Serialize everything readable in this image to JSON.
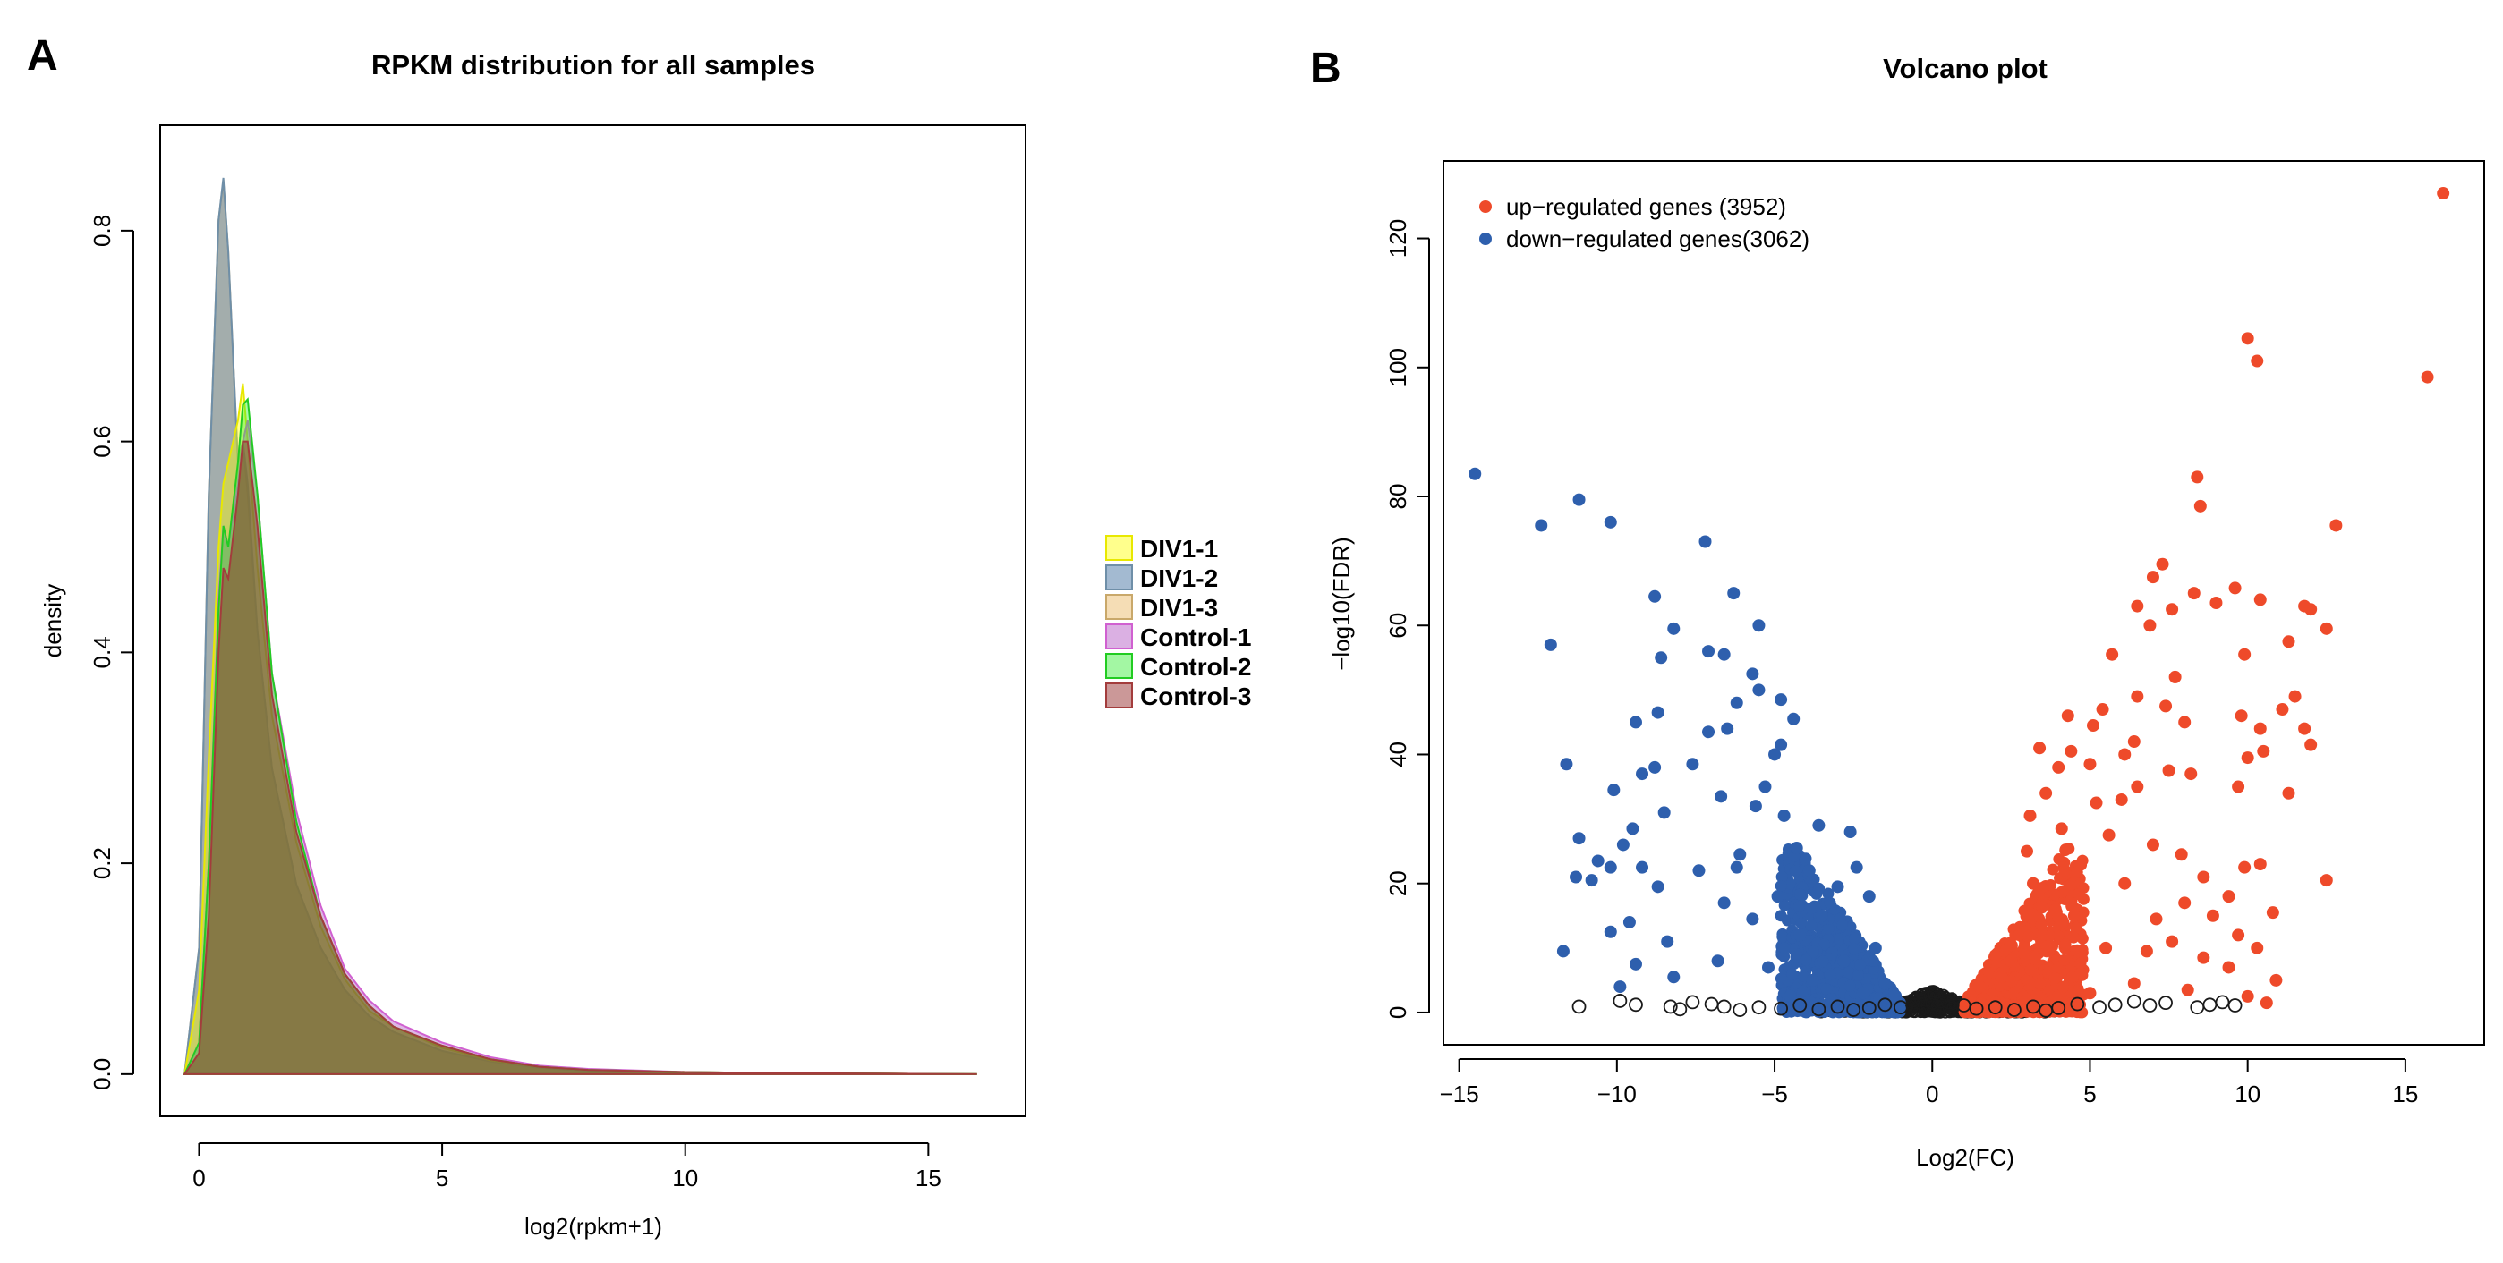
{
  "panels": {
    "a": {
      "letter": "A"
    },
    "b": {
      "letter": "B"
    }
  },
  "chart_data": [
    {
      "type": "area",
      "title": "RPKM distribution for all samples",
      "xlabel": "log2(rpkm+1)",
      "ylabel": "density",
      "xlim": [
        -0.8,
        17
      ],
      "ylim": [
        -0.04,
        0.9
      ],
      "xticks": [
        0,
        5,
        10,
        15
      ],
      "yticks": [
        0.0,
        0.2,
        0.4,
        0.6,
        0.8
      ],
      "xtick_labels": [
        "0",
        "5",
        "10",
        "15"
      ],
      "ytick_labels": [
        "0.0",
        "0.2",
        "0.4",
        "0.6",
        "0.8"
      ],
      "grid": false,
      "legend_position": "right",
      "x": [
        -0.3,
        0,
        0.2,
        0.4,
        0.5,
        0.6,
        0.8,
        0.9,
        1.0,
        1.2,
        1.5,
        2,
        2.5,
        3,
        3.5,
        4,
        5,
        6,
        7,
        8,
        10,
        12,
        14,
        16
      ],
      "series": [
        {
          "name": "DIV1-1",
          "fill": "#ffff00",
          "stroke": "#e8e800",
          "values": [
            0,
            0.08,
            0.3,
            0.5,
            0.56,
            0.58,
            0.62,
            0.655,
            0.6,
            0.48,
            0.34,
            0.22,
            0.14,
            0.09,
            0.06,
            0.045,
            0.025,
            0.013,
            0.007,
            0.004,
            0.002,
            0.001,
            0.0005,
            0
          ]
        },
        {
          "name": "DIV1-2",
          "fill": "#336699",
          "stroke": "#6f8fa8",
          "values": [
            0,
            0.12,
            0.55,
            0.81,
            0.85,
            0.78,
            0.58,
            0.6,
            0.56,
            0.42,
            0.29,
            0.18,
            0.12,
            0.08,
            0.055,
            0.04,
            0.022,
            0.012,
            0.006,
            0.003,
            0.0015,
            0.001,
            0.0004,
            0
          ]
        },
        {
          "name": "DIV1-3",
          "fill": "#e8b45c",
          "stroke": "#c9a86a",
          "values": [
            0,
            0.12,
            0.55,
            0.81,
            0.848,
            0.78,
            0.58,
            0.6,
            0.55,
            0.42,
            0.29,
            0.18,
            0.12,
            0.08,
            0.055,
            0.04,
            0.022,
            0.012,
            0.006,
            0.003,
            0.0015,
            0.001,
            0.0004,
            0
          ]
        },
        {
          "name": "Control-1",
          "fill": "#b050c0",
          "stroke": "#d060d0",
          "values": [
            0,
            0.03,
            0.2,
            0.45,
            0.52,
            0.5,
            0.56,
            0.6,
            0.62,
            0.55,
            0.38,
            0.25,
            0.16,
            0.1,
            0.07,
            0.05,
            0.03,
            0.016,
            0.008,
            0.005,
            0.002,
            0.001,
            0.0005,
            0
          ]
        },
        {
          "name": "Control-2",
          "fill": "#33ee33",
          "stroke": "#22cc22",
          "values": [
            0,
            0.03,
            0.2,
            0.44,
            0.52,
            0.5,
            0.58,
            0.635,
            0.64,
            0.55,
            0.38,
            0.24,
            0.15,
            0.095,
            0.065,
            0.045,
            0.027,
            0.014,
            0.007,
            0.004,
            0.002,
            0.001,
            0.0005,
            0
          ]
        },
        {
          "name": "Control-3",
          "fill": "#8b1a1a",
          "stroke": "#a33c3c",
          "values": [
            0,
            0.02,
            0.15,
            0.4,
            0.48,
            0.47,
            0.55,
            0.6,
            0.6,
            0.52,
            0.36,
            0.23,
            0.15,
            0.095,
            0.065,
            0.045,
            0.027,
            0.014,
            0.007,
            0.004,
            0.002,
            0.001,
            0.0005,
            0
          ]
        }
      ]
    },
    {
      "type": "scatter",
      "title": "Volcano plot",
      "xlabel": "Log2(FC)",
      "ylabel": "−log10(FDR)",
      "xlim": [
        -15.5,
        17.5
      ],
      "ylim": [
        -5,
        132
      ],
      "xticks": [
        -15,
        -10,
        -5,
        0,
        5,
        10,
        15
      ],
      "yticks": [
        0,
        20,
        40,
        60,
        80,
        100,
        120
      ],
      "xtick_labels": [
        "−15",
        "−10",
        "−5",
        "0",
        "5",
        "10",
        "15"
      ],
      "ytick_labels": [
        "0",
        "20",
        "40",
        "60",
        "80",
        "100",
        "120"
      ],
      "grid": false,
      "legend_position": "top-left",
      "colors": {
        "up": "#ee4a2a",
        "down": "#2e5fad",
        "ns": "#1a1a1a"
      },
      "series": [
        {
          "name": "up−regulated genes (3952)",
          "key": "up",
          "points": [
            [
              16.2,
              127
            ],
            [
              15.7,
              98.5
            ],
            [
              10.0,
              104.5
            ],
            [
              10.3,
              101
            ],
            [
              12.8,
              75.5
            ],
            [
              8.4,
              83
            ],
            [
              8.5,
              78.5
            ],
            [
              11.8,
              63
            ],
            [
              10.4,
              64
            ],
            [
              9.6,
              65.8
            ],
            [
              12.0,
              62.5
            ],
            [
              7.3,
              69.5
            ],
            [
              12.5,
              59.5
            ],
            [
              7.0,
              67.5
            ],
            [
              8.3,
              65
            ],
            [
              9.0,
              63.5
            ],
            [
              7.6,
              62.5
            ],
            [
              6.5,
              63
            ],
            [
              6.9,
              60
            ],
            [
              11.3,
              57.5
            ],
            [
              5.7,
              55.5
            ],
            [
              9.9,
              55.5
            ],
            [
              7.7,
              52
            ],
            [
              11.5,
              49
            ],
            [
              11.8,
              44
            ],
            [
              11.1,
              47
            ],
            [
              7.4,
              47.5
            ],
            [
              9.8,
              46
            ],
            [
              8.0,
              45
            ],
            [
              6.5,
              49
            ],
            [
              5.4,
              47
            ],
            [
              5.1,
              44.5
            ],
            [
              4.3,
              46
            ],
            [
              6.4,
              42
            ],
            [
              6.1,
              40
            ],
            [
              10.4,
              44
            ],
            [
              10.5,
              40.5
            ],
            [
              10.0,
              39.5
            ],
            [
              4.4,
              40.5
            ],
            [
              12.0,
              41.5
            ],
            [
              8.2,
              37
            ],
            [
              7.5,
              37.5
            ],
            [
              4.0,
              38
            ],
            [
              3.4,
              41
            ],
            [
              5.0,
              38.5
            ],
            [
              11.3,
              34
            ],
            [
              9.7,
              35
            ],
            [
              6.5,
              35
            ],
            [
              6.0,
              33
            ],
            [
              3.6,
              34
            ],
            [
              5.2,
              32.5
            ],
            [
              3.1,
              30.5
            ],
            [
              4.1,
              28.5
            ],
            [
              5.6,
              27.5
            ],
            [
              7.0,
              26
            ],
            [
              7.9,
              24.5
            ],
            [
              10.4,
              23
            ],
            [
              9.9,
              22.5
            ],
            [
              12.5,
              20.5
            ],
            [
              8.6,
              21
            ],
            [
              6.1,
              20
            ],
            [
              9.4,
              18
            ],
            [
              8.0,
              17
            ],
            [
              10.8,
              15.5
            ],
            [
              7.1,
              14.5
            ],
            [
              8.9,
              15
            ],
            [
              9.7,
              12
            ],
            [
              7.6,
              11
            ],
            [
              10.3,
              10
            ],
            [
              6.8,
              9.5
            ],
            [
              8.6,
              8.5
            ],
            [
              9.4,
              7
            ],
            [
              10.9,
              5
            ],
            [
              6.4,
              4.5
            ],
            [
              8.1,
              3.5
            ],
            [
              10.0,
              2.5
            ],
            [
              10.6,
              1.5
            ],
            [
              2.0,
              1.5
            ],
            [
              3.0,
              2.0
            ],
            [
              4.0,
              2.5
            ],
            [
              5.0,
              3.0
            ],
            [
              2.5,
              8.0
            ],
            [
              3.5,
              12.0
            ],
            [
              4.5,
              15.0
            ],
            [
              5.5,
              10.0
            ],
            [
              3.2,
              20.0
            ],
            [
              4.2,
              22.0
            ],
            [
              1.5,
              4.0
            ],
            [
              2.2,
              5.5
            ],
            [
              3.0,
              25.0
            ]
          ]
        },
        {
          "name": "down−regulated genes(3062)",
          "key": "down",
          "points": [
            [
              -14.5,
              83.5
            ],
            [
              -11.2,
              79.5
            ],
            [
              -12.4,
              75.5
            ],
            [
              -10.2,
              76
            ],
            [
              -7.2,
              73
            ],
            [
              -12.1,
              57
            ],
            [
              -8.8,
              64.5
            ],
            [
              -6.3,
              65
            ],
            [
              -5.5,
              60
            ],
            [
              -7.1,
              56
            ],
            [
              -6.6,
              55.5
            ],
            [
              -5.7,
              52.5
            ],
            [
              -8.2,
              59.5
            ],
            [
              -8.6,
              55
            ],
            [
              -5.5,
              50
            ],
            [
              -6.2,
              48
            ],
            [
              -9.4,
              45
            ],
            [
              -8.7,
              46.5
            ],
            [
              -4.8,
              48.5
            ],
            [
              -4.4,
              45.5
            ],
            [
              -6.5,
              44
            ],
            [
              -7.1,
              43.5
            ],
            [
              -4.8,
              41.5
            ],
            [
              -5.0,
              40
            ],
            [
              -11.6,
              38.5
            ],
            [
              -8.8,
              38
            ],
            [
              -9.2,
              37
            ],
            [
              -7.6,
              38.5
            ],
            [
              -10.1,
              34.5
            ],
            [
              -6.7,
              33.5
            ],
            [
              -5.3,
              35
            ],
            [
              -5.6,
              32
            ],
            [
              -4.7,
              30.5
            ],
            [
              -8.5,
              31
            ],
            [
              -9.5,
              28.5
            ],
            [
              -11.2,
              27
            ],
            [
              -9.8,
              26
            ],
            [
              -9.2,
              22.5
            ],
            [
              -10.6,
              23.5
            ],
            [
              -10.2,
              22.5
            ],
            [
              -11.3,
              21
            ],
            [
              -10.8,
              20.5
            ],
            [
              -8.7,
              19.5
            ],
            [
              -7.4,
              22
            ],
            [
              -6.2,
              22.5
            ],
            [
              -9.6,
              14
            ],
            [
              -10.2,
              12.5
            ],
            [
              -8.4,
              11
            ],
            [
              -11.7,
              9.5
            ],
            [
              -9.4,
              7.5
            ],
            [
              -8.2,
              5.5
            ],
            [
              -9.9,
              4
            ],
            [
              -6.8,
              8
            ],
            [
              -5.7,
              14.5
            ],
            [
              -6.6,
              17
            ],
            [
              -6.1,
              24.5
            ],
            [
              -3.6,
              29
            ],
            [
              -4.3,
              25.5
            ],
            [
              -2.6,
              28
            ],
            [
              -2.4,
              22.5
            ],
            [
              -3.0,
              19.5
            ],
            [
              -2.0,
              18
            ],
            [
              -3.5,
              15
            ],
            [
              -4.2,
              12
            ],
            [
              -1.8,
              10
            ],
            [
              -2.8,
              8
            ],
            [
              -3.8,
              5
            ],
            [
              -1.5,
              4.5
            ],
            [
              -2.2,
              3
            ],
            [
              -3.2,
              2
            ],
            [
              -4.5,
              2.5
            ],
            [
              -5.2,
              7
            ],
            [
              -4.9,
              18
            ],
            [
              -3.9,
              22
            ],
            [
              -1.2,
              2.5
            ]
          ]
        },
        {
          "name": "",
          "key": "ns",
          "points": [
            [
              -9.9,
              1.8
            ],
            [
              -9.4,
              1.2
            ],
            [
              -8.3,
              0.9
            ],
            [
              -7.6,
              1.6
            ],
            [
              -7.0,
              1.3
            ],
            [
              -6.6,
              0.9
            ],
            [
              -5.5,
              0.8
            ],
            [
              -4.8,
              0.6
            ],
            [
              -4.2,
              1.1
            ],
            [
              -3.6,
              0.5
            ],
            [
              -3.0,
              0.9
            ],
            [
              -2.5,
              0.4
            ],
            [
              -2.0,
              0.7
            ],
            [
              -1.5,
              1.2
            ],
            [
              -1.0,
              0.8
            ],
            [
              -0.6,
              1.9
            ],
            [
              -0.3,
              2.8
            ],
            [
              0,
              1.5
            ],
            [
              0.3,
              2.2
            ],
            [
              0.6,
              0.9
            ],
            [
              1.0,
              1.1
            ],
            [
              1.4,
              0.6
            ],
            [
              2.0,
              0.8
            ],
            [
              2.6,
              0.4
            ],
            [
              3.2,
              0.9
            ],
            [
              4.0,
              0.7
            ],
            [
              4.6,
              1.3
            ],
            [
              5.3,
              0.8
            ],
            [
              5.8,
              1.2
            ],
            [
              6.4,
              1.7
            ],
            [
              6.9,
              1.1
            ],
            [
              7.4,
              1.5
            ],
            [
              8.4,
              0.8
            ],
            [
              8.8,
              1.2
            ],
            [
              9.2,
              1.6
            ],
            [
              9.6,
              1.1
            ],
            [
              -11.2,
              0.9
            ],
            [
              -8.0,
              0.5
            ],
            [
              -6.1,
              0.4
            ],
            [
              3.6,
              0.3
            ]
          ]
        }
      ]
    }
  ]
}
